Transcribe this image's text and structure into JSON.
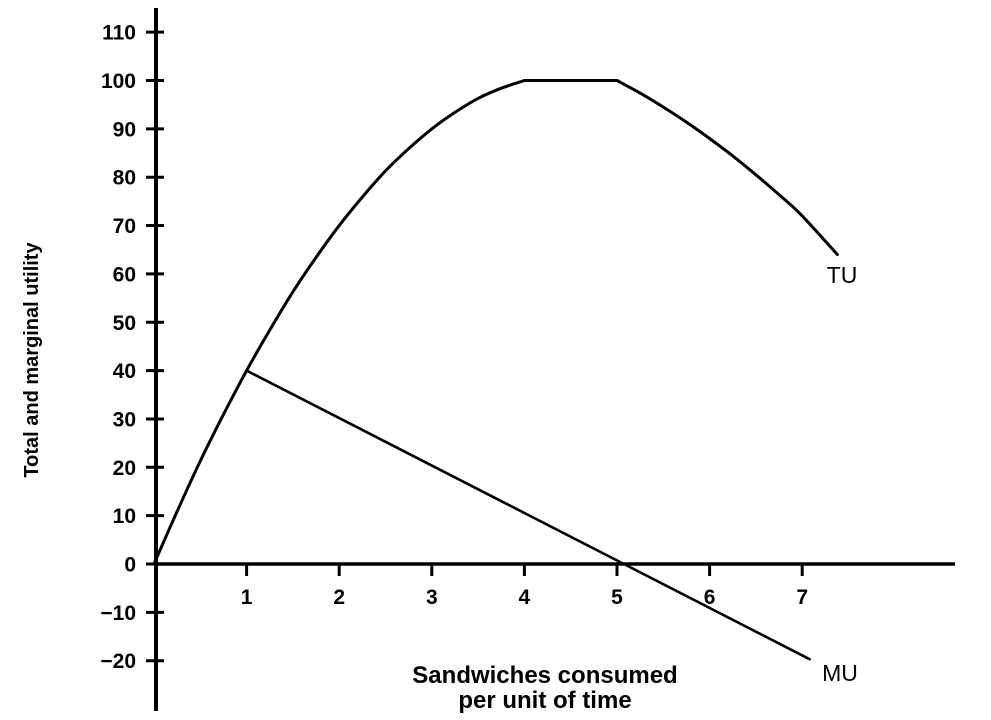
{
  "page": {
    "background_color": "#ffffff",
    "ink_color": "#000000"
  },
  "chart_data": {
    "type": "line",
    "title": "",
    "ylabel": "Total and marginal utility",
    "xlabel_line1": "Sandwiches consumed",
    "xlabel_line2": "per unit of time",
    "grid": false,
    "legend": "inline-curve-labels",
    "xlim": [
      0,
      8.65
    ],
    "ylim": [
      -30,
      115
    ],
    "x_tick_values": [
      1,
      2,
      3,
      4,
      5,
      6,
      7
    ],
    "x_ticks": [
      "1",
      "2",
      "3",
      "4",
      "5",
      "6",
      "7"
    ],
    "y_tick_values": [
      110,
      100,
      90,
      80,
      70,
      60,
      50,
      40,
      30,
      20,
      10,
      0,
      -10,
      -20
    ],
    "y_ticks": [
      "110",
      "100",
      "90",
      "80",
      "70",
      "60",
      "50",
      "40",
      "30",
      "20",
      "10",
      "0",
      "−10",
      "−20"
    ],
    "series": [
      {
        "name": "TU",
        "label": "TU",
        "element_name": "tu-curve",
        "kind": "smooth-curve",
        "stroke_width": 3,
        "key_points": {
          "x": [
            0,
            1,
            2,
            3,
            4,
            5,
            6,
            7,
            7.38
          ],
          "y": [
            0,
            40,
            70,
            90,
            100,
            100,
            88,
            72,
            64
          ]
        },
        "segments": [
          {
            "smooth": true,
            "points": [
              [
                0,
                0
              ],
              [
                0.25,
                10.9
              ],
              [
                0.5,
                21.3
              ],
              [
                0.75,
                30.9
              ],
              [
                1,
                40
              ],
              [
                1.25,
                48.4
              ],
              [
                1.5,
                56.3
              ],
              [
                1.75,
                63.4
              ],
              [
                2,
                70
              ],
              [
                2.25,
                75.9
              ],
              [
                2.5,
                81.3
              ],
              [
                2.75,
                85.9
              ],
              [
                3,
                90
              ],
              [
                3.25,
                93.4
              ],
              [
                3.5,
                96.3
              ],
              [
                3.75,
                98.4
              ],
              [
                4,
                100
              ]
            ]
          },
          {
            "smooth": false,
            "points": [
              [
                4,
                100
              ],
              [
                5,
                100
              ]
            ]
          },
          {
            "smooth": true,
            "points": [
              [
                5,
                100
              ],
              [
                5.25,
                97.4
              ],
              [
                5.5,
                94.5
              ],
              [
                5.75,
                91.4
              ],
              [
                6,
                88
              ],
              [
                6.25,
                84.4
              ],
              [
                6.5,
                80.5
              ],
              [
                6.75,
                76.4
              ],
              [
                7,
                72
              ],
              [
                7.38,
                64
              ]
            ]
          }
        ]
      },
      {
        "name": "MU",
        "label": "MU",
        "element_name": "mu-line",
        "kind": "straight-line",
        "stroke_width": 2.6,
        "key_points": {
          "x": [
            1,
            5.07,
            7.08
          ],
          "y": [
            40,
            0,
            -19.7
          ]
        },
        "segments": [
          {
            "smooth": false,
            "points": [
              [
                1,
                40
              ],
              [
                7.08,
                -19.7
              ]
            ]
          }
        ]
      }
    ]
  }
}
